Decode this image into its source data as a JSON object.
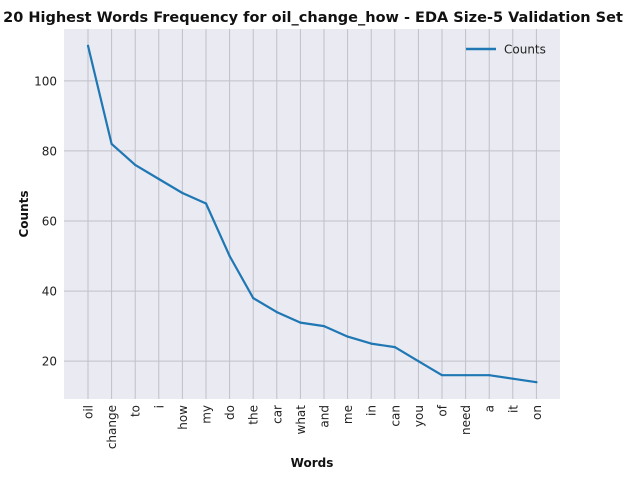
{
  "chart_data": {
    "type": "line",
    "title": "20 Highest Words Frequency for oil_change_how - EDA Size-5 Validation Set",
    "xlabel": "Words",
    "ylabel": "Counts",
    "categories": [
      "oil",
      "change",
      "to",
      "i",
      "how",
      "my",
      "do",
      "the",
      "car",
      "what",
      "and",
      "me",
      "in",
      "can",
      "you",
      "of",
      "need",
      "a",
      "it",
      "on"
    ],
    "series": [
      {
        "name": "Counts",
        "values": [
          110,
          82,
          76,
          72,
          68,
          65,
          50,
          38,
          34,
          31,
          30,
          27,
          25,
          24,
          20,
          16,
          16,
          16,
          15,
          14
        ]
      }
    ],
    "ylim": [
      9.2,
      114.8
    ],
    "yticks": [
      20,
      40,
      60,
      80,
      100
    ],
    "grid": true,
    "legend_position": "top-right",
    "colors": {
      "line": "#1f77b4",
      "plot_bg": "#eaeaf2",
      "grid": "#c0c0c8"
    }
  }
}
